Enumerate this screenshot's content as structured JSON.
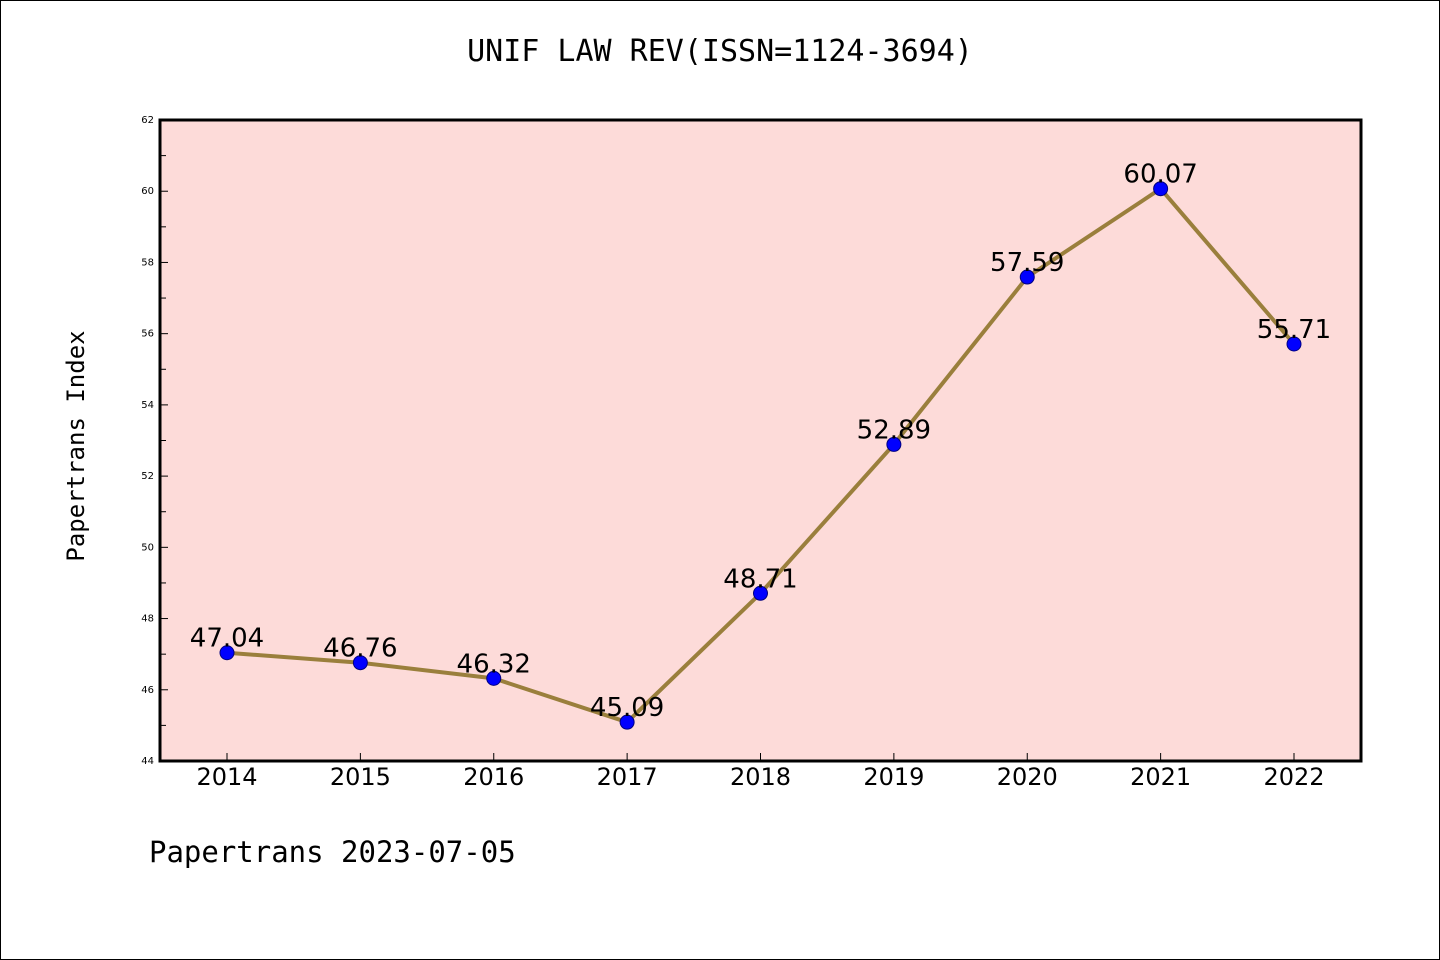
{
  "title": "UNIF LAW REV(ISSN=1124-3694)",
  "footer": "Papertrans 2023-07-05",
  "chart_data": {
    "type": "line",
    "title": "UNIF LAW REV(ISSN=1124-3694)",
    "xlabel": "",
    "ylabel": "Papertrans Index",
    "categories": [
      "2014",
      "2015",
      "2016",
      "2017",
      "2018",
      "2019",
      "2020",
      "2021",
      "2022"
    ],
    "series": [
      {
        "values": [
          47.04,
          46.76,
          46.32,
          45.09,
          48.71,
          52.89,
          57.59,
          60.07,
          55.71
        ],
        "data_labels": [
          "47.04",
          "46.76",
          "46.32",
          "45.09",
          "48.71",
          "52.89",
          "57.59",
          "60.07",
          "55.71"
        ]
      }
    ],
    "ylim": [
      44,
      62
    ],
    "yticks": [
      "44",
      "46",
      "48",
      "50",
      "52",
      "54",
      "56",
      "58",
      "60",
      "62"
    ],
    "grid": false,
    "legend": "none",
    "colors": {
      "plot_background": "#fddbd9",
      "line": "#9a7f3c",
      "marker": "#0000ff"
    }
  }
}
